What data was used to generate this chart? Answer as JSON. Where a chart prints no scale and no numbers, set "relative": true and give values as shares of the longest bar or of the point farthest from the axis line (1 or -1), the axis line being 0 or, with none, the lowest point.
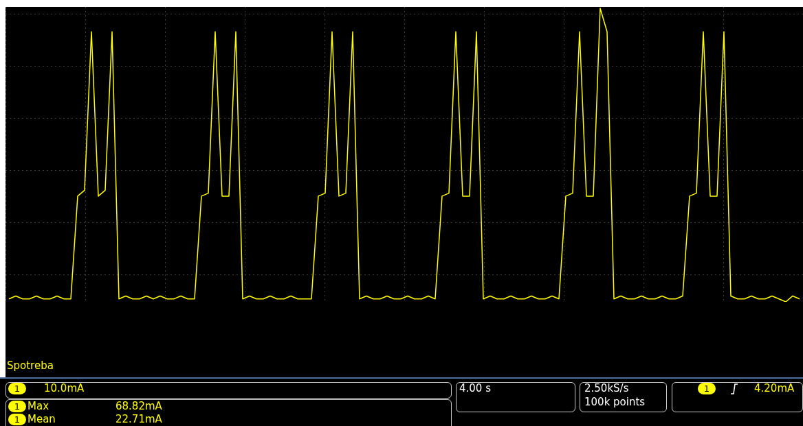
{
  "chart_data": {
    "type": "line",
    "relative": true,
    "grid": true,
    "categories": [
      null,
      null,
      null,
      null,
      null,
      null,
      null,
      null,
      null,
      null,
      null,
      null,
      null,
      null,
      null,
      null,
      null,
      null,
      null,
      null,
      null,
      null,
      null,
      null,
      null,
      null,
      null,
      null,
      null,
      null,
      null,
      null,
      null,
      null,
      null,
      null,
      null,
      null,
      null,
      null,
      null,
      null,
      null,
      null,
      null,
      null,
      null,
      null,
      null,
      null,
      null,
      null,
      null,
      null,
      null,
      null,
      null,
      null,
      null,
      null,
      null,
      null,
      null,
      null,
      null,
      null,
      null,
      null,
      null,
      null,
      null,
      null,
      null,
      null,
      null,
      null,
      null,
      null,
      null,
      null,
      null,
      null,
      null,
      null,
      null,
      null,
      null,
      null,
      null,
      null,
      null,
      null,
      null,
      null,
      null,
      null,
      null,
      null,
      null,
      null,
      null,
      null,
      null,
      null,
      null,
      null,
      null,
      null,
      null,
      null,
      null,
      null,
      null,
      null,
      null,
      null
    ],
    "series": [
      {
        "color": "#ffff00",
        "values": [
          0.01,
          0.02,
          0.01,
          0.01,
          0.02,
          0.01,
          0.01,
          0.02,
          0.01,
          0.01,
          0.36,
          0.38,
          0.92,
          0.36,
          0.38,
          0.92,
          0.01,
          0.02,
          0.01,
          0.01,
          0.02,
          0.01,
          0.02,
          0.01,
          0.01,
          0.02,
          0.01,
          0.01,
          0.36,
          0.37,
          0.92,
          0.36,
          0.36,
          0.92,
          0.01,
          0.02,
          0.01,
          0.01,
          0.02,
          0.01,
          0.01,
          0.02,
          0.01,
          0.01,
          0.01,
          0.36,
          0.37,
          0.92,
          0.36,
          0.37,
          0.92,
          0.01,
          0.02,
          0.01,
          0.01,
          0.02,
          0.01,
          0.01,
          0.02,
          0.01,
          0.01,
          0.02,
          0.01,
          0.36,
          0.37,
          0.92,
          0.36,
          0.36,
          0.92,
          0.01,
          0.02,
          0.01,
          0.01,
          0.02,
          0.01,
          0.01,
          0.02,
          0.01,
          0.01,
          0.02,
          0.01,
          0.36,
          0.37,
          0.92,
          0.36,
          0.36,
          1,
          0.92,
          0.01,
          0.02,
          0.01,
          0.01,
          0.02,
          0.01,
          0.01,
          0.02,
          0.01,
          0.01,
          0.02,
          0.36,
          0.37,
          0.92,
          0.36,
          0.36,
          0.92,
          0.02,
          0.01,
          0.01,
          0.02,
          0.01,
          0.01,
          0.02,
          0.01,
          0,
          0.02,
          0.01
        ]
      }
    ],
    "annotations": [
      "Spotreba",
      "1",
      "10.0mA",
      "1",
      "Max",
      "68.82mA",
      "1",
      "Mean",
      "22.71mA",
      "4.00 s",
      "2.50kS/s",
      "100k points",
      "1",
      "4.20mA"
    ]
  }
}
